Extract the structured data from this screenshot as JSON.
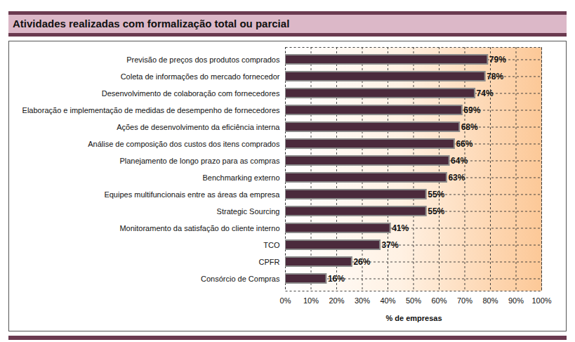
{
  "chart_data": {
    "type": "bar",
    "title": "Atividades realizadas com formalização total ou parcial",
    "x_label": "% de empresas",
    "orientation": "horizontal",
    "categories": [
      "Previsão de preços dos produtos comprados",
      "Coleta de informações do mercado fornecedor",
      "Desenvolvimento de colaboração com fornecedores",
      "Elaboração e implementação de medidas de desempenho de fornecedores",
      "Ações de desenvolvimento da eficiência interna",
      "Análise de composição dos custos dos itens comprados",
      "Planejamento de longo prazo para as compras",
      "Benchmarking externo",
      "Equipes multifuncionais entre as áreas da empresa",
      "Strategic Sourcing",
      "Monitoramento da satisfação do cliente interno",
      "TCO",
      "CPFR",
      "Consórcio de Compras"
    ],
    "values": [
      79,
      78,
      74,
      69,
      68,
      66,
      64,
      63,
      55,
      55,
      41,
      37,
      26,
      16
    ],
    "value_labels": [
      "79%",
      "78%",
      "74%",
      "69%",
      "68%",
      "66%",
      "64%",
      "63%",
      "55%",
      "55%",
      "41%",
      "37%",
      "26%",
      "16%"
    ],
    "data_labels": true,
    "color": "#4b2a3c",
    "xlim": [
      0,
      100
    ],
    "xticks": [
      {
        "value": 0,
        "label": "0%"
      },
      {
        "value": 10,
        "label": "10%"
      },
      {
        "value": 20,
        "label": "20%"
      },
      {
        "value": 30,
        "label": "30%"
      },
      {
        "value": 40,
        "label": "40%"
      },
      {
        "value": 50,
        "label": "50%"
      },
      {
        "value": 60,
        "label": "60%"
      },
      {
        "value": 70,
        "label": "70%"
      },
      {
        "value": 80,
        "label": "80%"
      },
      {
        "value": 90,
        "label": "90%"
      },
      {
        "value": 100,
        "label": "100%"
      }
    ],
    "grid": true
  }
}
